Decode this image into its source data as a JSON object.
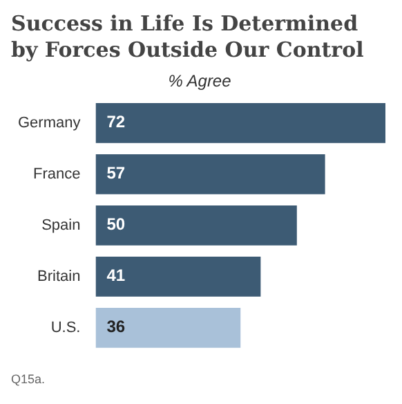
{
  "chart_data": {
    "type": "bar",
    "orientation": "horizontal",
    "title": "Success in Life Is Determined by Forces Outside Our Control",
    "subtitle": "% Agree",
    "categories": [
      "Germany",
      "France",
      "Spain",
      "Britain",
      "U.S."
    ],
    "values": [
      72,
      57,
      50,
      41,
      36
    ],
    "colors": [
      "#3d5b74",
      "#3d5b74",
      "#3d5b74",
      "#3d5b74",
      "#a9c1d9"
    ],
    "data_labels": true,
    "legend": false,
    "annotations": [
      "Q15a."
    ]
  }
}
